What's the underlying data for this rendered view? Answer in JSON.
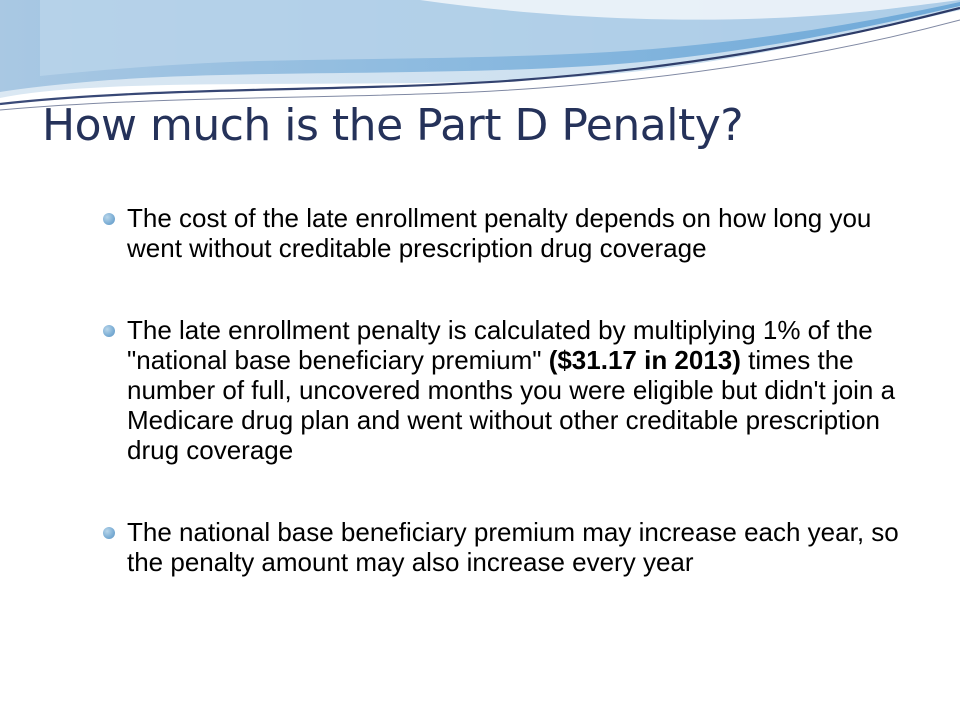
{
  "slide": {
    "title": "How much is the Part D Penalty?",
    "bullets": [
      {
        "text": "The cost of the late enrollment penalty depends on how long you went without creditable prescription drug coverage"
      },
      {
        "text_before": "The late enrollment penalty is calculated by multiplying 1% of the \"national base beneficiary premium\" ",
        "text_bold": "($31.17 in 2013)",
        "text_after": " times the number of full, uncovered months you were eligible but didn't join a Medicare drug plan and went without other creditable prescription drug coverage"
      },
      {
        "text": "The national base beneficiary premium may increase each year, so the penalty amount may also increase every year"
      }
    ]
  },
  "colors": {
    "title": "#25325a",
    "bullet_marker": "#7fb0d6",
    "banner_blue": "#7fb0d6",
    "banner_navy": "#2c3a66"
  }
}
